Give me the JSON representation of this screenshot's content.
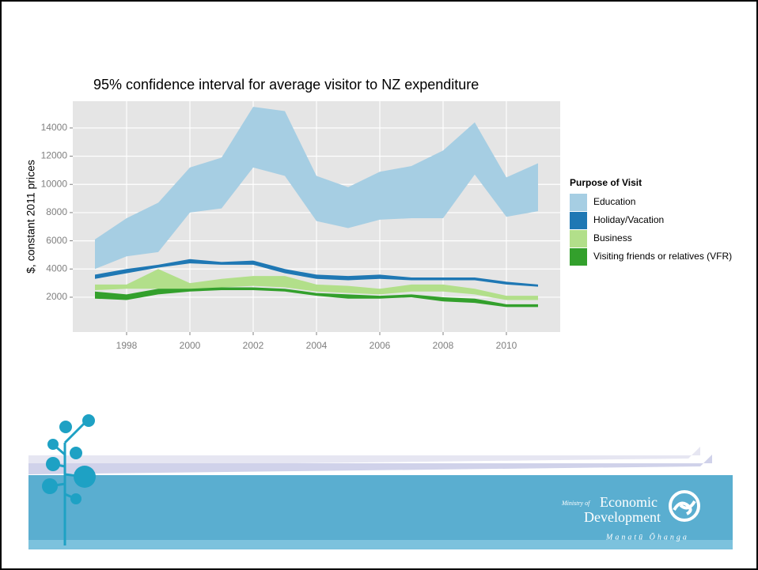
{
  "chart_data": {
    "type": "ribbon",
    "title": "95% confidence interval for average visitor to NZ expenditure",
    "y_label": "$, constant 2011 prices",
    "legend_title": "Purpose of Visit",
    "legend_position": "right",
    "grid": true,
    "x": [
      1997,
      1998,
      1999,
      2000,
      2001,
      2002,
      2003,
      2004,
      2005,
      2006,
      2007,
      2008,
      2009,
      2010,
      2011
    ],
    "xlim": [
      1996.3,
      2011.7
    ],
    "xticks": [
      1998,
      2000,
      2002,
      2004,
      2006,
      2008,
      2010
    ],
    "ylim": [
      -470,
      15900
    ],
    "yticks": [
      2000,
      4000,
      6000,
      8000,
      10000,
      12000,
      14000
    ],
    "series": [
      {
        "name": "Education",
        "color": "#a6cee3",
        "upper": [
          6100,
          7600,
          8700,
          11200,
          11900,
          15500,
          15200,
          10600,
          9800,
          10900,
          11300,
          12400,
          14400,
          10500,
          11500
        ],
        "lower": [
          4000,
          4900,
          5200,
          8000,
          8300,
          11200,
          10600,
          7400,
          6900,
          7500,
          7600,
          7600,
          10700,
          7700,
          8100
        ]
      },
      {
        "name": "Holiday/Vacation",
        "color": "#1f78b4",
        "upper": [
          3600,
          4000,
          4300,
          4700,
          4500,
          4600,
          4000,
          3600,
          3500,
          3600,
          3400,
          3400,
          3400,
          3100,
          2900
        ],
        "lower": [
          3300,
          3700,
          4100,
          4400,
          4300,
          4300,
          3700,
          3300,
          3200,
          3300,
          3200,
          3200,
          3200,
          2900,
          2750
        ]
      },
      {
        "name": "Business",
        "color": "#b2df8a",
        "upper": [
          2900,
          2900,
          4000,
          3000,
          3300,
          3500,
          3500,
          2900,
          2800,
          2600,
          2900,
          2900,
          2600,
          2100,
          2100
        ],
        "lower": [
          2500,
          2600,
          2600,
          2500,
          2700,
          2800,
          2700,
          2400,
          2300,
          2200,
          2400,
          2400,
          2200,
          1800,
          1800
        ]
      },
      {
        "name": "Visiting friends or relatives (VFR)",
        "color": "#33a02c",
        "upper": [
          2400,
          2200,
          2600,
          2600,
          2700,
          2700,
          2600,
          2300,
          2200,
          2100,
          2200,
          2000,
          1900,
          1500,
          1500
        ],
        "lower": [
          1900,
          1800,
          2200,
          2400,
          2500,
          2500,
          2400,
          2100,
          1900,
          1900,
          2000,
          1700,
          1600,
          1300,
          1300
        ]
      }
    ]
  },
  "branding": {
    "ministry_of": "Ministry of",
    "line1": "Economic",
    "line2": "Development",
    "maori": "Manatū Ōhanga"
  }
}
